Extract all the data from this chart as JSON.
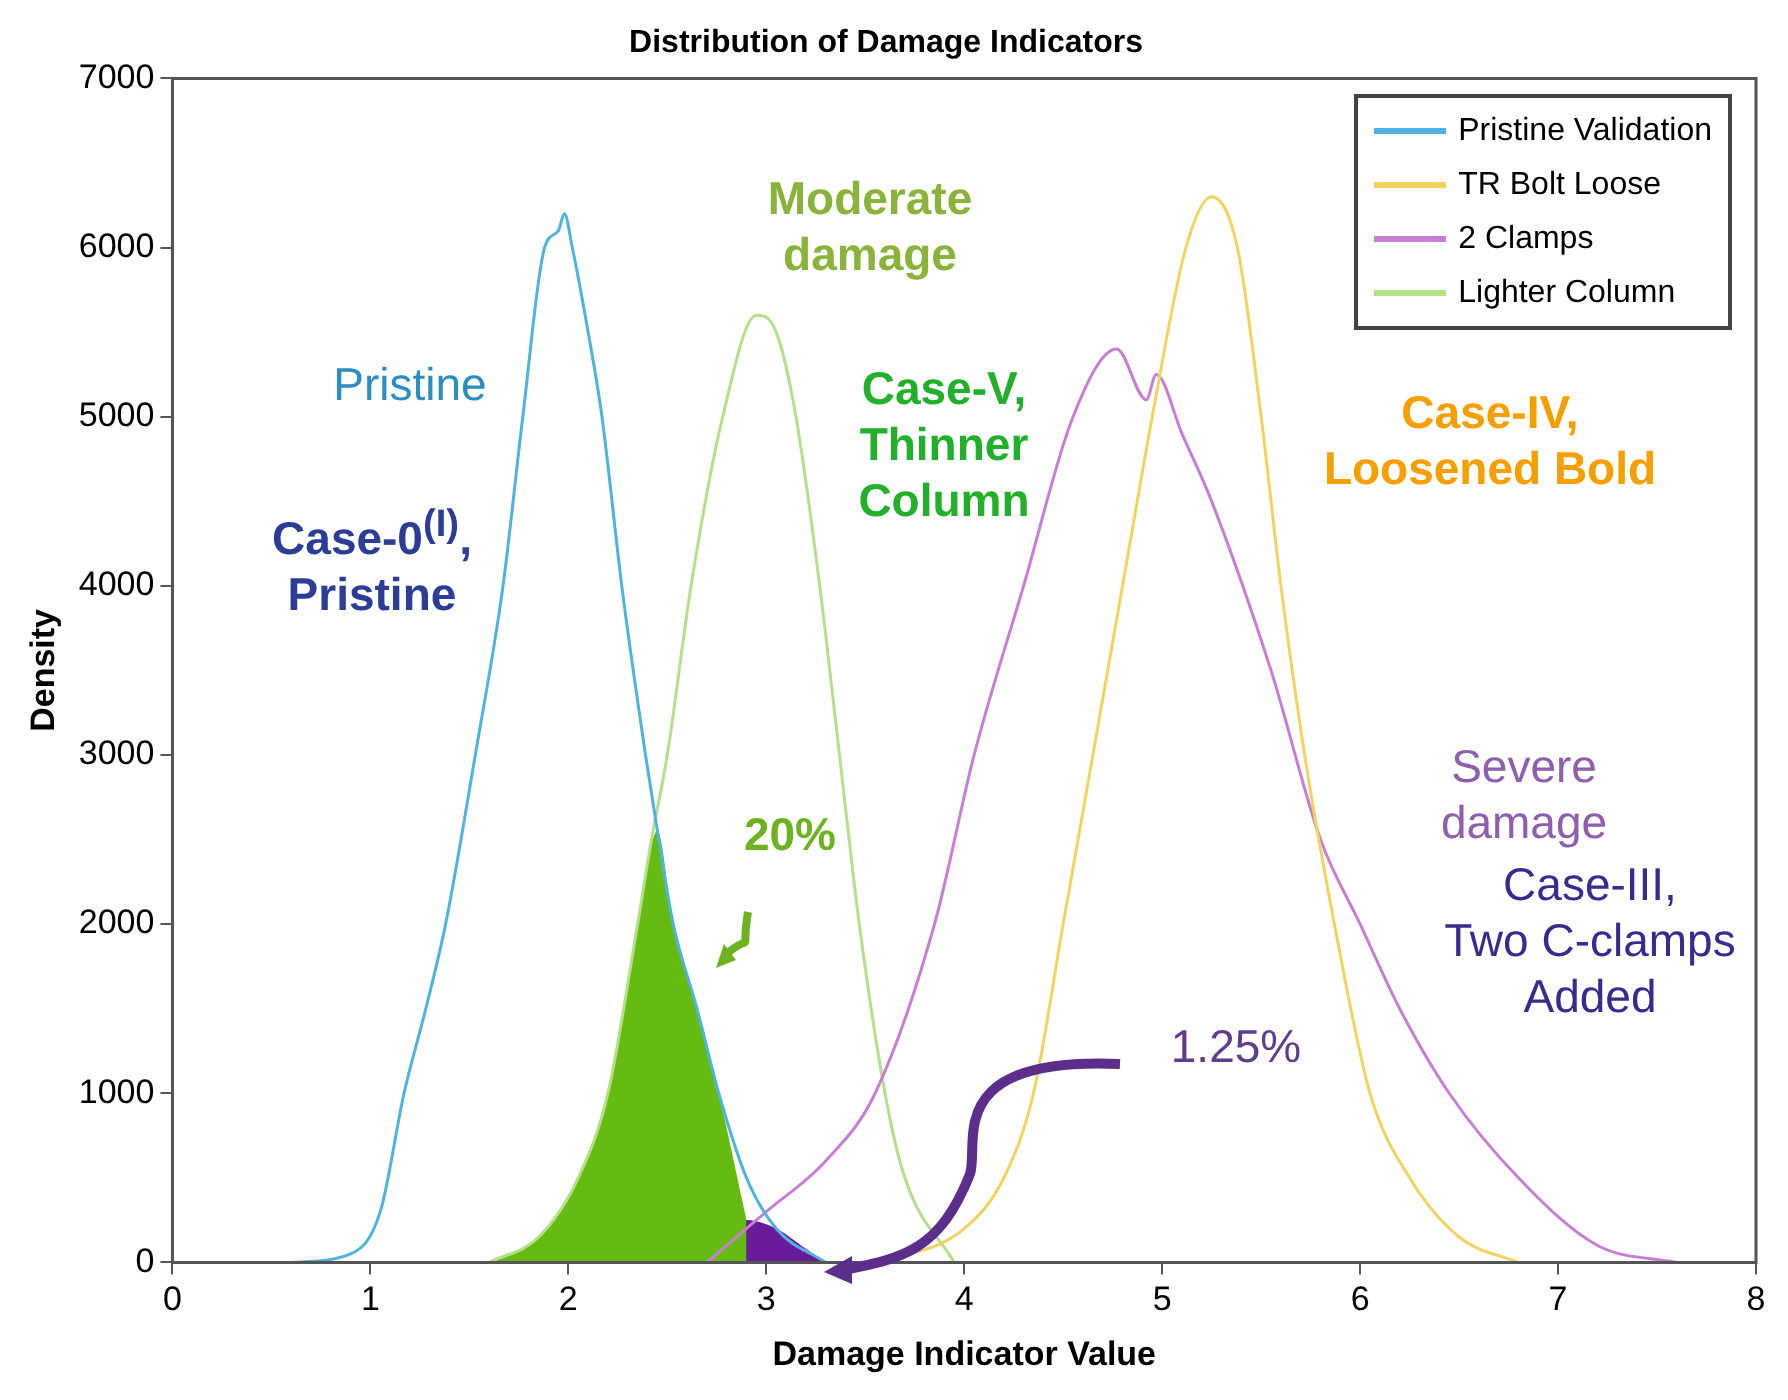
{
  "chart_data": {
    "type": "line",
    "title": "Distribution of Damage Indicators",
    "xlabel": "Damage Indicator Value",
    "ylabel": "Density",
    "xlim": [
      0,
      8
    ],
    "xticks": [
      0,
      1,
      2,
      3,
      4,
      5,
      6,
      7,
      8
    ],
    "ylim": [
      0,
      7000
    ],
    "yticks": [
      0,
      1000,
      2000,
      3000,
      4000,
      5000,
      6000,
      7000
    ],
    "legend": "top right",
    "marker": "none",
    "series": [
      {
        "name": "Pristine Validation",
        "color": "#4fb3e0",
        "x": [
          0.6,
          0.9,
          1.05,
          1.17,
          1.28,
          1.38,
          1.53,
          1.67,
          1.77,
          1.88,
          1.95,
          1.98,
          2.02,
          2.1,
          2.17,
          2.27,
          2.39,
          2.45,
          2.53,
          2.65,
          2.76,
          2.9,
          3.05,
          3.3
        ],
        "values": [
          0,
          50,
          300,
          1000,
          1500,
          2000,
          3000,
          4000,
          5000,
          6000,
          6100,
          6200,
          6000,
          5500,
          5000,
          4000,
          3000,
          2550,
          2000,
          1500,
          1000,
          500,
          200,
          0
        ]
      },
      {
        "name": "TR Bolt Loose",
        "color": "#f2d45c",
        "x": [
          3.6,
          4.0,
          4.2,
          4.35,
          4.5,
          4.65,
          4.8,
          4.95,
          5.12,
          5.25,
          5.38,
          5.5,
          5.6,
          5.72,
          5.87,
          6.05,
          6.25,
          6.5,
          6.8
        ],
        "values": [
          0,
          200,
          500,
          1000,
          2000,
          3000,
          4000,
          5000,
          6000,
          6300,
          6000,
          5000,
          4000,
          3000,
          2000,
          1000,
          500,
          150,
          0
        ]
      },
      {
        "name": "2 Clamps",
        "color": "#c77fd6",
        "x": [
          2.7,
          3.0,
          3.3,
          3.55,
          3.85,
          4.05,
          4.3,
          4.55,
          4.77,
          4.92,
          4.97,
          5.1,
          5.25,
          5.55,
          5.8,
          6.0,
          6.2,
          6.45,
          6.8,
          7.2,
          7.6
        ],
        "values": [
          0,
          300,
          600,
          1000,
          2000,
          3000,
          4000,
          5000,
          5400,
          5100,
          5250,
          4900,
          4500,
          3500,
          2500,
          2000,
          1500,
          1000,
          500,
          100,
          0
        ]
      },
      {
        "name": "Lighter Column",
        "color": "#b5e08a",
        "x": [
          1.6,
          1.85,
          2.05,
          2.2,
          2.35,
          2.42,
          2.5,
          2.62,
          2.78,
          2.95,
          3.05,
          3.15,
          3.27,
          3.37,
          3.47,
          3.6,
          3.7,
          3.95
        ],
        "values": [
          0,
          150,
          500,
          1000,
          2000,
          2500,
          3000,
          4000,
          5000,
          5600,
          5500,
          5000,
          4000,
          3000,
          2000,
          1000,
          500,
          0
        ]
      },
      {
        "type": "area",
        "color": "#66bb11",
        "x": [
          1.6,
          1.85,
          2.05,
          2.2,
          2.35,
          2.45,
          2.53,
          2.65,
          2.76,
          2.9
        ],
        "values": [
          0,
          150,
          500,
          1000,
          2000,
          2550,
          2000,
          1500,
          1000,
          250
        ]
      },
      {
        "type": "area",
        "color": "#6a1b9a",
        "x": [
          2.75,
          2.9,
          3.05,
          3.2,
          3.3
        ],
        "values": [
          0,
          250,
          200,
          80,
          0
        ]
      }
    ],
    "annotations": [
      "Moderate\ndamage",
      "Pristine",
      "Case-0$^{(I)}$,\nPristine",
      "Case-V,\nThinner\nColumn",
      "Case-IV,\nLoosened Bold",
      "20%",
      "Severe\ndamage",
      "Case-III,\nTwo C-clamps\nAdded",
      "1.25%"
    ]
  }
}
